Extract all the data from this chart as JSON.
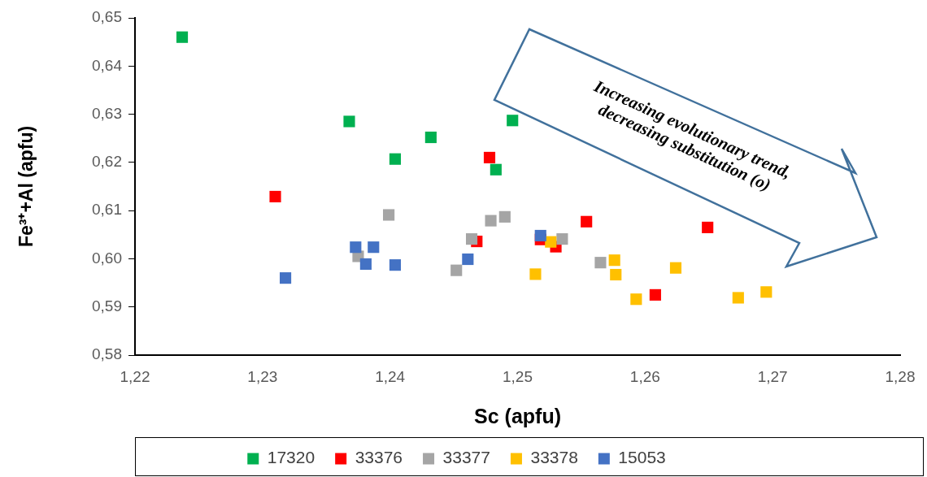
{
  "chart_data": {
    "type": "scatter",
    "xlabel": "Sc (apfu)",
    "ylabel": "Fe³⁺+Al (apfu)",
    "xlim": [
      1.22,
      1.28
    ],
    "xticks": [
      {
        "value": 1.22,
        "label": "1,22"
      },
      {
        "value": 1.23,
        "label": "1,23"
      },
      {
        "value": 1.24,
        "label": "1,24"
      },
      {
        "value": 1.25,
        "label": "1,25"
      },
      {
        "value": 1.26,
        "label": "1,26"
      },
      {
        "value": 1.27,
        "label": "1,27"
      },
      {
        "value": 1.28,
        "label": "1,28"
      }
    ],
    "ylim": [
      0.58,
      0.65
    ],
    "yticks": [
      {
        "value": 0.58,
        "label": "0,58"
      },
      {
        "value": 0.59,
        "label": "0,59"
      },
      {
        "value": 0.6,
        "label": "0,60"
      },
      {
        "value": 0.61,
        "label": "0,61"
      },
      {
        "value": 0.62,
        "label": "0,62"
      },
      {
        "value": 0.63,
        "label": "0,63"
      },
      {
        "value": 0.64,
        "label": "0,64"
      },
      {
        "value": 0.65,
        "label": "0,65"
      }
    ],
    "grid": false,
    "legend": "bottom",
    "marker": "square",
    "annotations": [
      "Increasing evolutionary trend, decreasing substitution (o)"
    ],
    "series": [
      {
        "name": "17320",
        "color": "#00b050",
        "x": [
          1.2237,
          1.2368,
          1.2404,
          1.2432,
          1.2483,
          1.2496
        ],
        "values": [
          0.646,
          0.6285,
          0.6207,
          0.6252,
          0.6185,
          0.6287
        ]
      },
      {
        "name": "33376",
        "color": "#ff0000",
        "x": [
          1.231,
          1.2478,
          1.2468,
          1.2518,
          1.253,
          1.2554,
          1.2649,
          1.2608
        ],
        "values": [
          0.6129,
          0.621,
          0.6036,
          0.604,
          0.6025,
          0.6077,
          0.6065,
          0.5925
        ]
      },
      {
        "name": "33377",
        "color": "#a5a5a5",
        "x": [
          1.2399,
          1.2375,
          1.2452,
          1.2464,
          1.2479,
          1.249,
          1.2535,
          1.2565
        ],
        "values": [
          0.6091,
          0.6005,
          0.5976,
          0.6041,
          0.6079,
          0.6087,
          0.6041,
          0.5992
        ]
      },
      {
        "name": "33378",
        "color": "#ffc000",
        "x": [
          1.2526,
          1.2514,
          1.2576,
          1.2577,
          1.2593,
          1.2624,
          1.2673,
          1.2695
        ],
        "values": [
          0.6035,
          0.5968,
          0.5997,
          0.5967,
          0.5916,
          0.5981,
          0.5919,
          0.5931
        ]
      },
      {
        "name": "15053",
        "color": "#4472c4",
        "x": [
          1.2318,
          1.2373,
          1.2387,
          1.2381,
          1.2404,
          1.2461,
          1.2518
        ],
        "values": [
          0.596,
          0.6024,
          0.6024,
          0.5989,
          0.5987,
          0.5999,
          0.6048
        ]
      }
    ]
  }
}
